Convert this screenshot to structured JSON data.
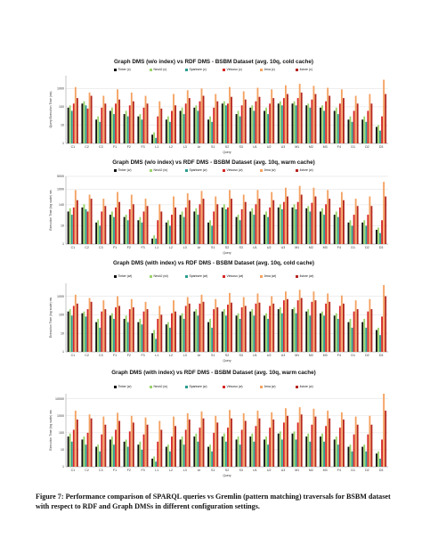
{
  "caption": "Figure 7: Performance comparison of SPARQL queries vs Gremlin (pattern matching) traversals for BSBM dataset with respect to RDF and Graph DMSs in different configuration settings.",
  "colors": {
    "series": [
      "#111111",
      "#9bd46a",
      "#2a9d8f",
      "#d62828",
      "#f4a261",
      "#b5261e"
    ]
  },
  "queries": [
    "C1",
    "C2",
    "C3",
    "F1",
    "F2",
    "F3",
    "L1",
    "L2",
    "L3",
    "Ur",
    "S1",
    "S2",
    "S3",
    "U1",
    "U2",
    "U3",
    "M1",
    "M2",
    "M3",
    "F4",
    "D1",
    "D2",
    "D3"
  ],
  "chart_data": [
    {
      "type": "bar",
      "title": "Graph DMS (w/o index) vs RDF DMS - BSBM Dataset (avg. 10q, cold cache)",
      "ylabel": "Query Execution Time (ms)",
      "xlabel": "Query",
      "scale": "log",
      "ylim": [
        1,
        5000
      ],
      "yticks": [
        "1000",
        "100",
        "10",
        "1"
      ],
      "tick_values": [
        1000,
        100,
        10,
        1
      ],
      "categories": [
        "C1",
        "C2",
        "C3",
        "F1",
        "F2",
        "F3",
        "L1",
        "L2",
        "L3",
        "Ur",
        "S1",
        "S2",
        "S3",
        "U1",
        "U2",
        "U3",
        "M1",
        "M2",
        "M3",
        "F4",
        "D1",
        "D2",
        "D3"
      ],
      "series": [
        {
          "name": "Tinker (c)",
          "values": [
            90,
            150,
            20,
            60,
            40,
            30,
            3,
            20,
            60,
            90,
            20,
            150,
            40,
            90,
            60,
            150,
            150,
            120,
            90,
            60,
            20,
            20,
            8
          ]
        },
        {
          "name": "Neo4J (c)",
          "values": [
            120,
            200,
            30,
            90,
            60,
            40,
            4,
            30,
            90,
            120,
            30,
            200,
            60,
            120,
            90,
            200,
            200,
            150,
            120,
            90,
            30,
            30,
            10
          ]
        },
        {
          "name": "Sparksee (c)",
          "values": [
            60,
            120,
            15,
            40,
            30,
            20,
            2,
            15,
            40,
            60,
            15,
            120,
            30,
            60,
            40,
            120,
            120,
            90,
            60,
            40,
            15,
            15,
            5
          ]
        },
        {
          "name": "Virtuoso (c)",
          "values": [
            150,
            80,
            90,
            150,
            120,
            90,
            30,
            60,
            150,
            200,
            90,
            150,
            120,
            200,
            150,
            300,
            300,
            250,
            200,
            150,
            60,
            60,
            30
          ]
        },
        {
          "name": "Jena (c)",
          "values": [
            1200,
            600,
            400,
            900,
            600,
            400,
            200,
            500,
            800,
            1000,
            500,
            1200,
            700,
            1100,
            900,
            1500,
            1800,
            1400,
            1100,
            900,
            400,
            500,
            3000
          ]
        },
        {
          "name": "4store (c)",
          "values": [
            300,
            400,
            150,
            250,
            200,
            150,
            80,
            120,
            300,
            400,
            200,
            350,
            250,
            350,
            300,
            500,
            600,
            500,
            400,
            300,
            150,
            150,
            500
          ]
        }
      ]
    },
    {
      "type": "bar",
      "title": "Graph DMS (w/o index) vs RDF DMS - BSBM Dataset (avg. 10q, warm cache)",
      "ylabel": "Execution Time (log scale) ms",
      "xlabel": "Query",
      "scale": "log",
      "ylim": [
        1,
        5000
      ],
      "yticks": [
        "5000",
        "1000",
        "140",
        "10",
        "1"
      ],
      "tick_values": [
        5000,
        1000,
        140,
        10,
        1
      ],
      "categories": [
        "C1",
        "C2",
        "C3",
        "F1",
        "F2",
        "F3",
        "L1",
        "L2",
        "L3",
        "Ur",
        "S1",
        "S2",
        "S3",
        "U1",
        "U2",
        "U3",
        "M1",
        "M2",
        "M3",
        "F4",
        "D1",
        "D2",
        "D3"
      ],
      "series": [
        {
          "name": "Tinker (w)",
          "values": [
            60,
            100,
            15,
            40,
            30,
            20,
            2,
            15,
            40,
            60,
            15,
            100,
            30,
            60,
            40,
            100,
            100,
            90,
            60,
            40,
            15,
            15,
            6
          ]
        },
        {
          "name": "Neo4J (w)",
          "values": [
            90,
            150,
            20,
            60,
            40,
            30,
            3,
            20,
            60,
            90,
            20,
            150,
            40,
            90,
            60,
            150,
            150,
            120,
            90,
            60,
            20,
            20,
            8
          ]
        },
        {
          "name": "Sparksee (w)",
          "values": [
            40,
            80,
            10,
            30,
            20,
            15,
            2,
            10,
            30,
            40,
            10,
            80,
            20,
            40,
            30,
            80,
            80,
            60,
            40,
            30,
            10,
            10,
            4
          ]
        },
        {
          "name": "Virtuoso (w)",
          "values": [
            100,
            60,
            60,
            100,
            80,
            60,
            20,
            40,
            100,
            150,
            60,
            100,
            80,
            150,
            100,
            200,
            200,
            180,
            150,
            100,
            40,
            40,
            20
          ]
        },
        {
          "name": "Jena (w)",
          "values": [
            900,
            500,
            300,
            700,
            500,
            300,
            150,
            400,
            600,
            800,
            400,
            900,
            500,
            900,
            700,
            1200,
            1500,
            1200,
            900,
            700,
            300,
            400,
            2500
          ]
        },
        {
          "name": "4store (w)",
          "values": [
            250,
            300,
            120,
            200,
            150,
            120,
            60,
            100,
            250,
            300,
            150,
            300,
            200,
            300,
            250,
            400,
            500,
            400,
            300,
            250,
            120,
            120,
            400
          ]
        }
      ]
    },
    {
      "type": "bar",
      "title": "Graph DMS (with index) vs RDF DMS - BSBM Dataset (avg. 10q, cold cache)",
      "ylabel": "Execution Time (log scale) ms",
      "xlabel": "Query",
      "scale": "log",
      "ylim": [
        1,
        5000
      ],
      "yticks": [
        "1000",
        "100",
        "10",
        "1"
      ],
      "tick_values": [
        1000,
        100,
        10,
        1
      ],
      "categories": [
        "C1",
        "C2",
        "C3",
        "F1",
        "F2",
        "F3",
        "L1",
        "L2",
        "L3",
        "Ur",
        "S1",
        "S2",
        "S3",
        "U1",
        "U2",
        "U3",
        "M1",
        "M2",
        "M3",
        "F4",
        "D1",
        "D2",
        "D3"
      ],
      "series": [
        {
          "name": "Tinker (wi)",
          "values": [
            150,
            120,
            40,
            90,
            60,
            40,
            10,
            30,
            90,
            150,
            40,
            150,
            90,
            150,
            90,
            200,
            200,
            150,
            120,
            90,
            40,
            40,
            15
          ]
        },
        {
          "name": "Neo4J (wi)",
          "values": [
            200,
            150,
            60,
            120,
            90,
            60,
            15,
            40,
            120,
            200,
            60,
            200,
            120,
            200,
            120,
            250,
            250,
            200,
            150,
            120,
            60,
            60,
            20
          ]
        },
        {
          "name": "Sparksee (wi)",
          "values": [
            90,
            80,
            20,
            60,
            40,
            30,
            5,
            20,
            60,
            90,
            20,
            90,
            60,
            90,
            60,
            120,
            120,
            90,
            90,
            60,
            20,
            20,
            8
          ]
        },
        {
          "name": "Virtuoso (wi)",
          "values": [
            300,
            200,
            150,
            250,
            200,
            150,
            60,
            120,
            300,
            400,
            200,
            350,
            250,
            400,
            300,
            600,
            600,
            500,
            400,
            300,
            150,
            150,
            80
          ]
        },
        {
          "name": "Jena (wi)",
          "values": [
            1200,
            800,
            600,
            1000,
            700,
            500,
            300,
            600,
            900,
            1200,
            700,
            1500,
            900,
            1400,
            1000,
            1800,
            2200,
            1800,
            1400,
            1100,
            600,
            700,
            4000
          ]
        },
        {
          "name": "4store (wi)",
          "values": [
            400,
            500,
            200,
            300,
            250,
            200,
            100,
            150,
            400,
            500,
            250,
            450,
            300,
            450,
            400,
            700,
            800,
            600,
            500,
            400,
            200,
            200,
            1000
          ]
        }
      ]
    },
    {
      "type": "bar",
      "title": "Graph DMS (with index) vs RDF DMS - BSBM Dataset (avg. 10q, warm cache)",
      "ylabel": "Execution Time (log scale) ms",
      "xlabel": "Query",
      "scale": "log",
      "ylim": [
        1,
        20000
      ],
      "yticks": [
        "10000",
        "1000",
        "100",
        "10",
        "1"
      ],
      "tick_values": [
        10000,
        1000,
        100,
        10,
        1
      ],
      "categories": [
        "C1",
        "C2",
        "C3",
        "F1",
        "F2",
        "F3",
        "L1",
        "L2",
        "L3",
        "Ur",
        "S1",
        "S2",
        "S3",
        "U1",
        "U2",
        "U3",
        "M1",
        "M2",
        "M3",
        "F4",
        "D1",
        "D2",
        "D3"
      ],
      "series": [
        {
          "name": "Tinker (w)",
          "values": [
            60,
            40,
            15,
            40,
            30,
            20,
            3,
            15,
            40,
            60,
            15,
            60,
            40,
            60,
            40,
            90,
            90,
            60,
            60,
            40,
            15,
            15,
            6
          ]
        },
        {
          "name": "Neo4J (w)",
          "values": [
            90,
            60,
            20,
            60,
            40,
            30,
            4,
            20,
            60,
            90,
            20,
            90,
            60,
            90,
            60,
            120,
            120,
            90,
            90,
            60,
            20,
            20,
            8
          ]
        },
        {
          "name": "Sparksee (w)",
          "values": [
            30,
            20,
            8,
            20,
            15,
            10,
            2,
            8,
            20,
            30,
            8,
            30,
            20,
            30,
            20,
            40,
            40,
            30,
            30,
            20,
            8,
            8,
            3
          ]
        },
        {
          "name": "Virtuoso (w)",
          "values": [
            150,
            100,
            80,
            150,
            120,
            80,
            30,
            60,
            150,
            200,
            100,
            200,
            150,
            250,
            200,
            400,
            400,
            300,
            250,
            200,
            80,
            80,
            40
          ]
        },
        {
          "name": "Jena (w)",
          "values": [
            2000,
            1200,
            900,
            1500,
            1000,
            800,
            500,
            900,
            1400,
            1800,
            1000,
            2200,
            1400,
            2000,
            1600,
            2800,
            3200,
            2600,
            2000,
            1600,
            900,
            1000,
            20000
          ]
        },
        {
          "name": "4store (w)",
          "values": [
            600,
            700,
            300,
            500,
            400,
            300,
            150,
            250,
            600,
            700,
            400,
            700,
            500,
            700,
            600,
            1000,
            1200,
            900,
            700,
            600,
            300,
            300,
            2000
          ]
        }
      ]
    }
  ]
}
